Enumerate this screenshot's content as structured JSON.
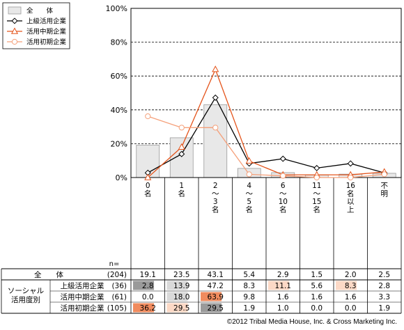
{
  "chart_data": {
    "type": "bar",
    "categories": [
      "0名",
      "1名",
      "2〜3名",
      "4〜5名",
      "6〜10名",
      "11〜15名",
      "16名以上",
      "不明"
    ],
    "category_labels_vertical": [
      [
        "0",
        "名"
      ],
      [
        "1",
        "名"
      ],
      [
        "2",
        "〜",
        "3",
        "名"
      ],
      [
        "4",
        "〜",
        "5",
        "名"
      ],
      [
        "6",
        "〜",
        "10",
        "名"
      ],
      [
        "11",
        "〜",
        "15",
        "名"
      ],
      [
        "16",
        "名",
        "以",
        "上"
      ],
      [
        "不",
        "明"
      ]
    ],
    "ylim": [
      0,
      100
    ],
    "yticks": [
      "0%",
      "20%",
      "40%",
      "60%",
      "80%",
      "100%"
    ],
    "grid": "dashed horizontal",
    "legend_position": "top-left",
    "series": [
      {
        "name": "全　　体",
        "kind": "bar",
        "color": "#e8e8e8",
        "values": [
          19.1,
          23.5,
          43.1,
          5.4,
          2.9,
          1.5,
          2.0,
          2.5
        ]
      },
      {
        "name": "上級活用企業",
        "kind": "line",
        "marker": "diamond",
        "color": "#000000",
        "values": [
          2.8,
          13.9,
          47.2,
          8.3,
          11.1,
          5.6,
          8.3,
          2.8
        ]
      },
      {
        "name": "活用中期企業",
        "kind": "line",
        "marker": "triangle",
        "color": "#e4531a",
        "values": [
          0.0,
          18.0,
          63.9,
          9.8,
          1.6,
          1.6,
          1.6,
          3.3
        ]
      },
      {
        "name": "活用初期企業",
        "kind": "line",
        "marker": "circle",
        "color": "#f5a07a",
        "values": [
          36.2,
          29.5,
          29.5,
          1.9,
          1.0,
          0.0,
          0.0,
          1.9
        ]
      }
    ],
    "table": {
      "n_label": "n=",
      "group_label_lines": [
        "ソーシャル",
        "活用度別"
      ],
      "rows": [
        {
          "label": "全　　体",
          "n": "(204)",
          "values": [
            "19.1",
            "23.5",
            "43.1",
            "5.4",
            "2.9",
            "1.5",
            "2.0",
            "2.5"
          ],
          "highlight": [
            "",
            "",
            "",
            "",
            "",
            "",
            "",
            ""
          ]
        },
        {
          "label": "上級活用企業",
          "n": "(36)",
          "values": [
            "2.8",
            "13.9",
            "47.2",
            "8.3",
            "11.1",
            "5.6",
            "8.3",
            "2.8"
          ],
          "highlight": [
            "dark",
            "light-gray",
            "",
            "",
            "peach",
            "",
            "peach",
            ""
          ]
        },
        {
          "label": "活用中期企業",
          "n": "(61)",
          "values": [
            "0.0",
            "18.0",
            "63.9",
            "9.8",
            "1.6",
            "1.6",
            "1.6",
            "3.3"
          ],
          "highlight": [
            "",
            "light-gray",
            "orange",
            "",
            "",
            "",
            "",
            ""
          ]
        },
        {
          "label": "活用初期企業",
          "n": "(105)",
          "values": [
            "36.2",
            "29.5",
            "29.5",
            "1.9",
            "1.0",
            "0.0",
            "0.0",
            "1.9"
          ],
          "highlight": [
            "orange",
            "peach",
            "dark",
            "",
            "",
            "",
            "",
            ""
          ]
        }
      ]
    },
    "highlight_colors": {
      "dark": "#9a9a9a",
      "light-gray": "#d9d9d9",
      "orange": "#f08b5e",
      "peach": "#fcd9c6"
    }
  },
  "footer": {
    "copyright": "©2012 Tribal Media House, Inc. & Cross Marketing Inc."
  }
}
